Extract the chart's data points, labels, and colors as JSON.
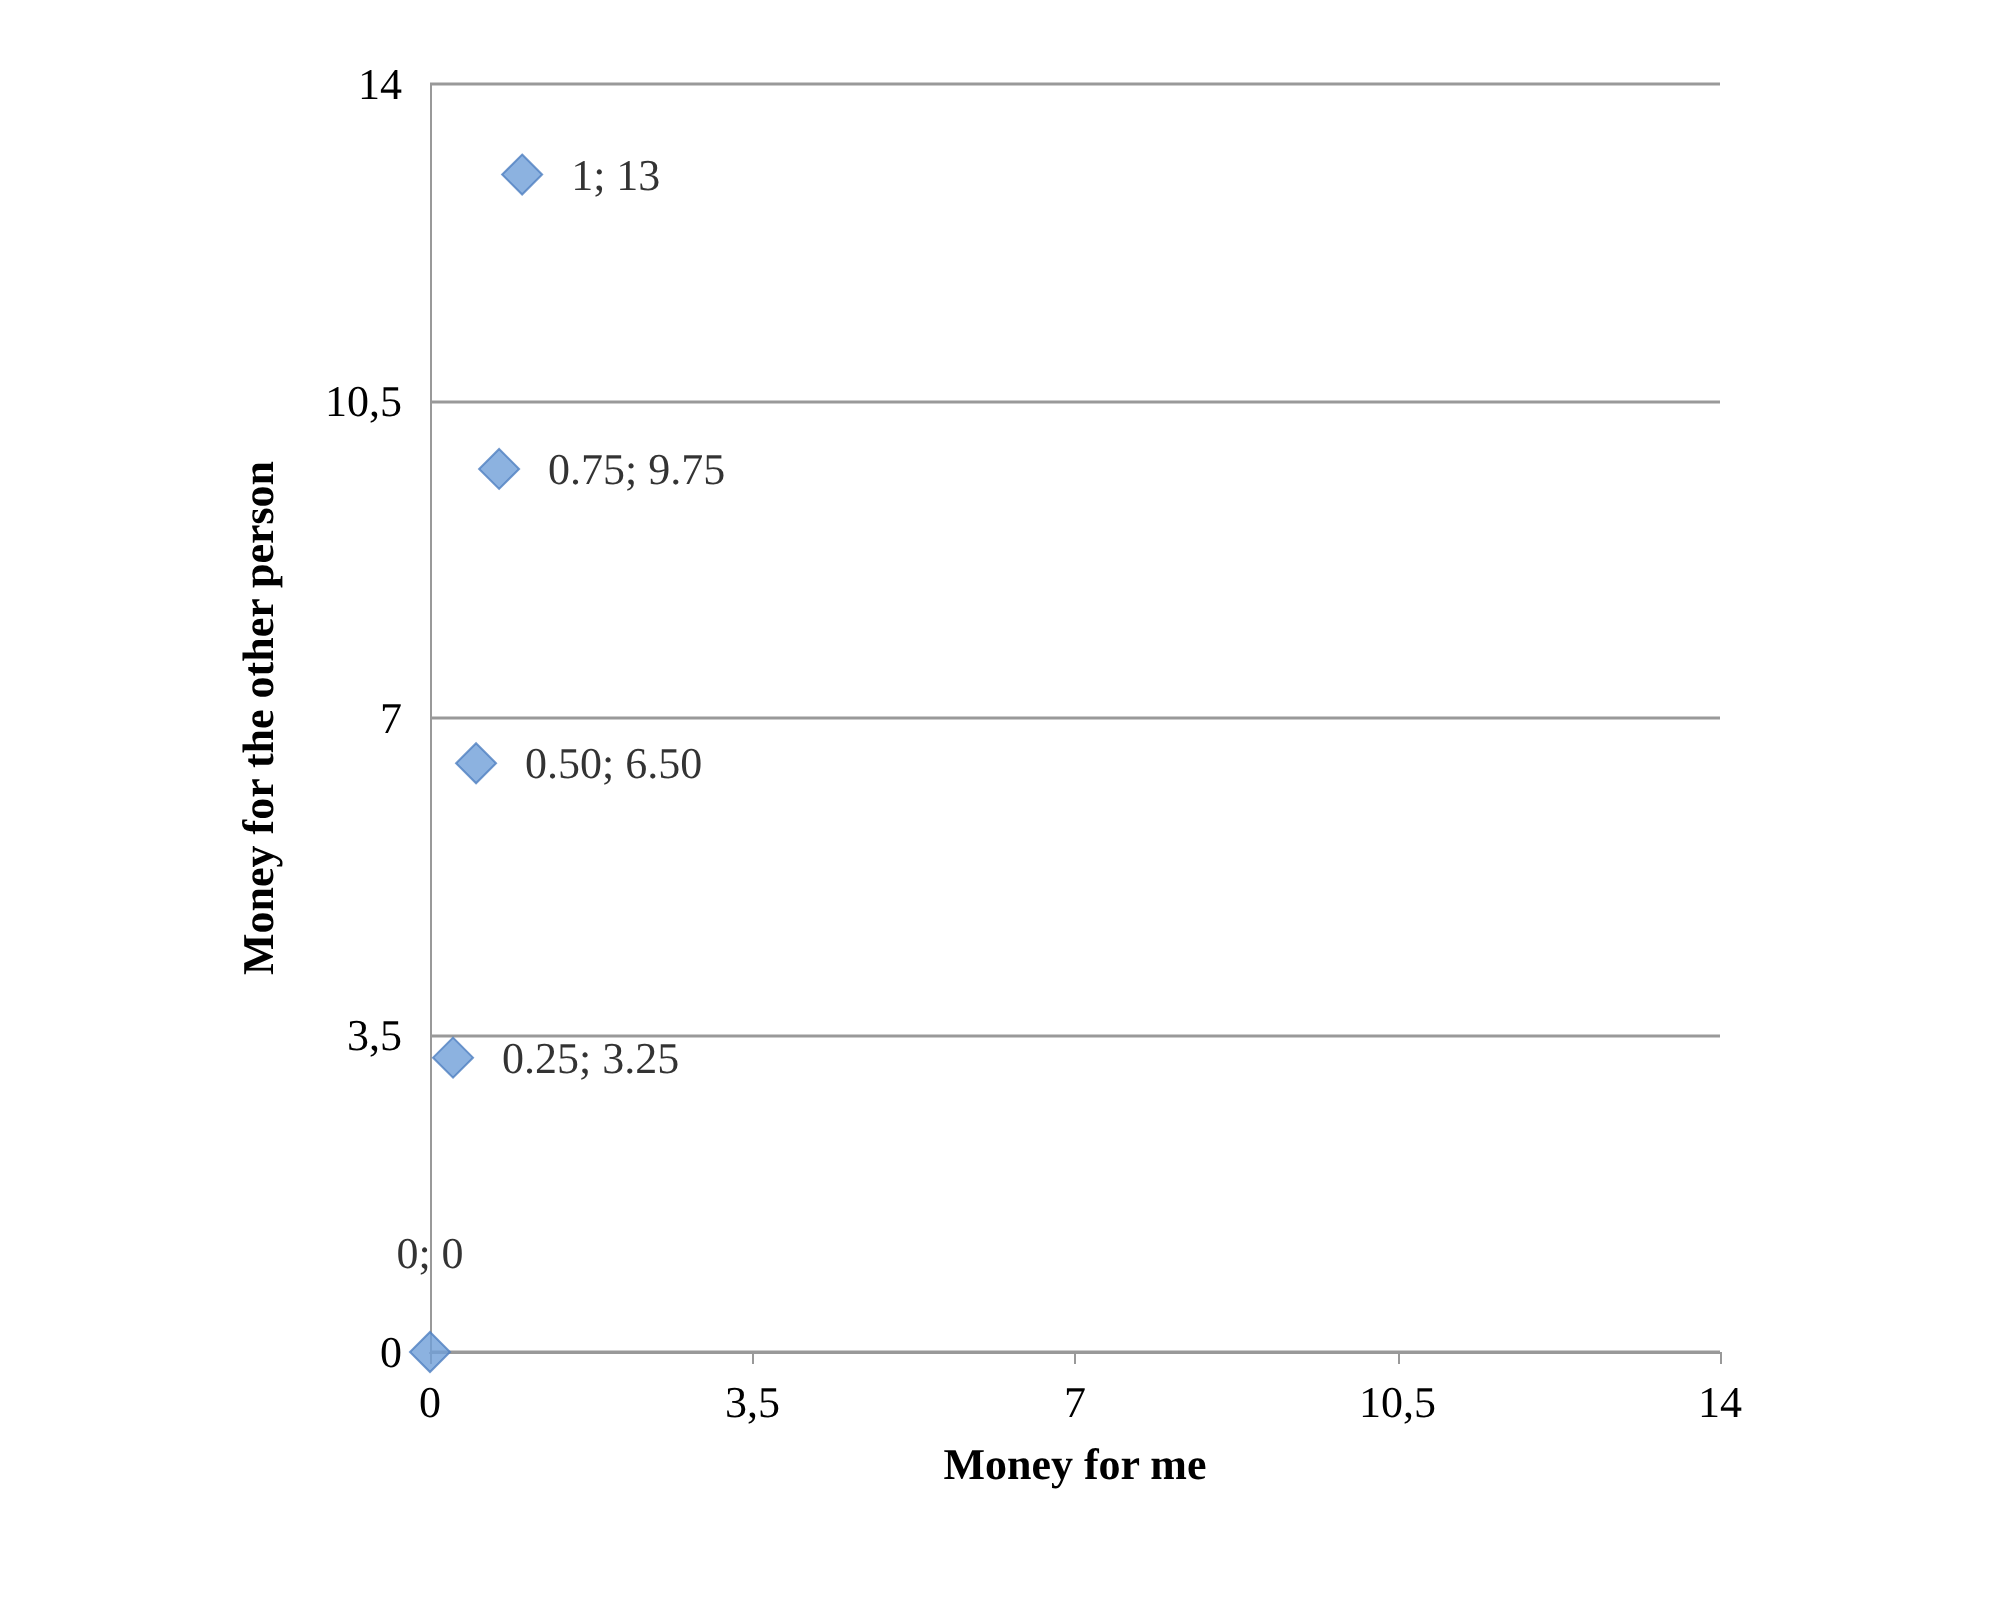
{
  "chart_data": {
    "type": "scatter",
    "xlabel": "Money for me",
    "ylabel": "Money for the other person",
    "x": [
      0,
      0.25,
      0.5,
      0.75,
      1
    ],
    "series": [
      {
        "color": "#6f9fd8",
        "values": [
          0,
          3.25,
          6.5,
          9.75,
          13
        ],
        "value_labels": [
          "0; 0",
          "0.25; 3.25",
          "0.50; 6.50",
          "0.75; 9.75",
          "1; 13"
        ]
      }
    ],
    "xlim": [
      0,
      14
    ],
    "ylim": [
      0,
      14
    ],
    "xticks": [
      0,
      {
        "value": 3.5,
        "label": "3,5"
      },
      7,
      {
        "value": 10.5,
        "label": "10,5"
      },
      14
    ],
    "yticks": [
      0,
      {
        "value": 3.5,
        "label": "3,5"
      },
      7,
      {
        "value": 10.5,
        "label": "10,5"
      },
      14
    ],
    "grid": "y",
    "marker": "diamond"
  }
}
